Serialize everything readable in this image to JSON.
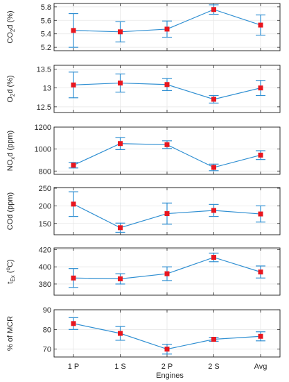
{
  "chart_data": {
    "type": "line",
    "categories": [
      "1 P",
      "1 S",
      "2 P",
      "2 S",
      "Avg"
    ],
    "xlabel": "Engines",
    "colors": {
      "line": "#2f8fd2",
      "errorbar": "#2f8fd2",
      "marker": "#e8161f"
    },
    "grid": true,
    "panels": [
      {
        "ylabel_parts": [
          {
            "t": "CO"
          },
          {
            "t": "2",
            "s": "sub"
          },
          {
            "t": "d (%)"
          }
        ],
        "ylim": [
          5.15,
          5.85
        ],
        "yticks": [
          5.2,
          5.4,
          5.6,
          5.8
        ],
        "tick_labels": [
          "5.2",
          "5.4",
          "5.6",
          "5.8"
        ],
        "values": [
          5.45,
          5.43,
          5.47,
          5.76,
          5.53
        ],
        "err": [
          0.25,
          0.15,
          0.12,
          0.07,
          0.15
        ]
      },
      {
        "ylabel_parts": [
          {
            "t": "O"
          },
          {
            "t": "2",
            "s": "sub"
          },
          {
            "t": "d (%)"
          }
        ],
        "ylim": [
          12.35,
          13.6
        ],
        "yticks": [
          12.5,
          13.0,
          13.5
        ],
        "tick_labels": [
          "12.5",
          "13",
          "13.5"
        ],
        "values": [
          13.08,
          13.13,
          13.09,
          12.7,
          13.0
        ],
        "err": [
          0.34,
          0.24,
          0.16,
          0.1,
          0.2
        ]
      },
      {
        "ylabel_parts": [
          {
            "t": "NO"
          },
          {
            "t": "x",
            "s": "sub"
          },
          {
            "t": "d (ppm)"
          }
        ],
        "ylim": [
          770,
          1200
        ],
        "yticks": [
          800,
          1000,
          1200
        ],
        "tick_labels": [
          "800",
          "1000",
          "1200"
        ],
        "values": [
          853,
          1050,
          1040,
          833,
          945
        ],
        "err": [
          25,
          55,
          35,
          30,
          40
        ]
      },
      {
        "ylabel_parts": [
          {
            "t": "COd (ppm)"
          }
        ],
        "ylim": [
          118,
          252
        ],
        "yticks": [
          150,
          200,
          250
        ],
        "tick_labels": [
          "150",
          "200",
          "250"
        ],
        "values": [
          205,
          138,
          178,
          187,
          177
        ],
        "err": [
          35,
          13,
          30,
          17,
          23
        ]
      },
      {
        "ylabel_parts": [
          {
            "t": "t"
          },
          {
            "t": "Ex",
            "s": "sub"
          },
          {
            "t": " ("
          },
          {
            "t": "o",
            "s": "sup"
          },
          {
            "t": "C)"
          }
        ],
        "ylim": [
          367,
          422
        ],
        "yticks": [
          380,
          400,
          420
        ],
        "tick_labels": [
          "380",
          "400",
          "420"
        ],
        "values": [
          387,
          386,
          392,
          411,
          394
        ],
        "err": [
          11,
          6,
          8,
          5,
          7
        ]
      },
      {
        "ylabel_parts": [
          {
            "t": "% of MCR"
          }
        ],
        "ylim": [
          66,
          90
        ],
        "yticks": [
          70,
          80,
          90
        ],
        "tick_labels": [
          "70",
          "80",
          "90"
        ],
        "values": [
          83,
          78,
          70,
          75,
          76.5
        ],
        "err": [
          3,
          3.5,
          2.5,
          1,
          2.3
        ]
      }
    ]
  }
}
